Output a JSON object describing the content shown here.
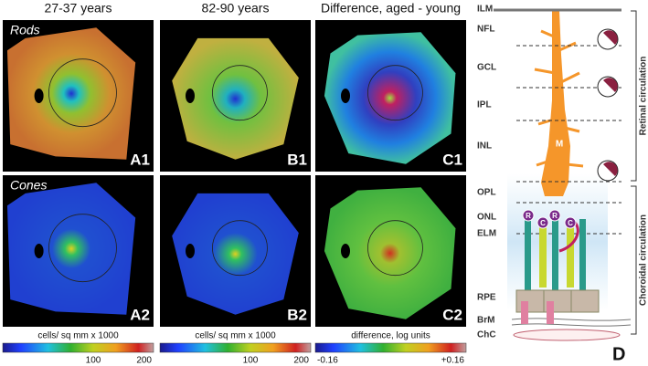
{
  "columns": [
    "27-37 years",
    "82-90 years",
    "Difference, aged - young"
  ],
  "rows": [
    "Rods",
    "Cones"
  ],
  "panels": [
    [
      "A1",
      "B1",
      "C1"
    ],
    [
      "A2",
      "B2",
      "C2"
    ]
  ],
  "colorbars": [
    {
      "label": "cells/ sq mm x 1000",
      "ticks": [
        "100",
        "200"
      ]
    },
    {
      "label": "cells/ sq mm x 1000",
      "ticks": [
        "100",
        "200"
      ]
    },
    {
      "label": "difference, log units",
      "ticks": [
        "-0.16",
        "+0.16"
      ]
    }
  ],
  "diagram": {
    "panel": "D",
    "layers": [
      "ILM",
      "NFL",
      "GCL",
      "IPL",
      "INL",
      "OPL",
      "ONL",
      "ELM",
      "RPE",
      "BrM",
      "ChC"
    ],
    "cells": [
      "M",
      "R",
      "C",
      "R",
      "C"
    ],
    "circulation": [
      "Retinal circulation",
      "Choroidal circulation"
    ]
  }
}
